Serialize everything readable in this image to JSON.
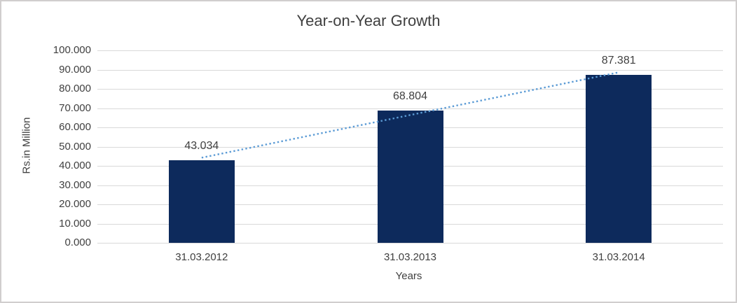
{
  "chart_data": {
    "type": "bar",
    "title": "Year-on-Year Growth",
    "categories": [
      "31.03.2012",
      "31.03.2013",
      "31.03.2014"
    ],
    "values": [
      43.034,
      68.804,
      87.381
    ],
    "value_labels": [
      "43.034",
      "68.804",
      "87.381"
    ],
    "xlabel": "Years",
    "ylabel": "Rs.in Million",
    "ylim": [
      0,
      100
    ],
    "ytick_step": 10,
    "ytick_labels": [
      "0.000",
      "10.000",
      "20.000",
      "30.000",
      "40.000",
      "50.000",
      "60.000",
      "70.000",
      "80.000",
      "90.000",
      "100.000"
    ],
    "grid": true,
    "legend": "none",
    "trendline": {
      "type": "linear",
      "style": "dotted"
    },
    "colors": {
      "bar": "#0d2a5c",
      "gridline": "#d9d9d9",
      "axis_line": "#d9d9d9",
      "text": "#404040",
      "trendline": "#5b9bd5",
      "background": "#ffffff",
      "frame_border": "#d0cece"
    }
  }
}
